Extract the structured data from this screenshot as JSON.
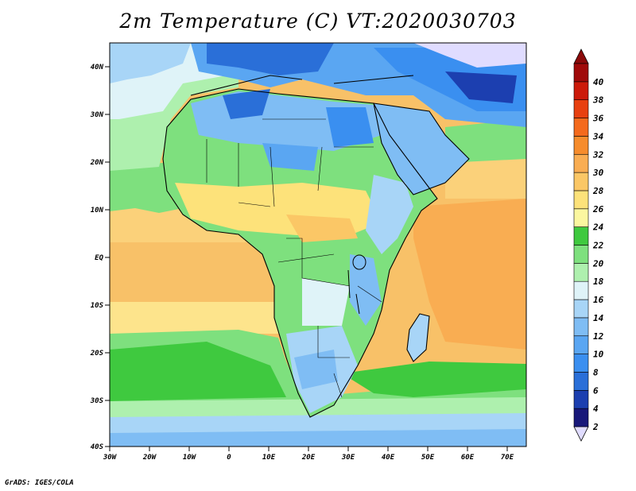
{
  "title": "2m Temperature (C) VT:2020030703",
  "footer": "GrADS: IGES/COLA",
  "axes": {
    "lat_ticks": [
      "40N",
      "30N",
      "20N",
      "10N",
      "EQ",
      "10S",
      "20S",
      "30S",
      "40S"
    ],
    "lon_ticks": [
      "30W",
      "20W",
      "10W",
      "0",
      "10E",
      "20E",
      "30E",
      "40E",
      "50E",
      "60E",
      "70E"
    ]
  },
  "colorbar": {
    "labels": [
      "2",
      "4",
      "6",
      "8",
      "10",
      "12",
      "14",
      "16",
      "18",
      "20",
      "22",
      "24",
      "26",
      "28",
      "30",
      "32",
      "34",
      "36",
      "38",
      "40"
    ],
    "colors": [
      "#18187a",
      "#1c3fb0",
      "#2a6fd8",
      "#3a8ff0",
      "#5aa6f2",
      "#7fbdf4",
      "#a8d5f7",
      "#dff3f8",
      "#aef0ae",
      "#7ee07e",
      "#3fc93f",
      "#fbf7a0",
      "#fde27a",
      "#fbc766",
      "#f9ad52",
      "#f68c2c",
      "#f46a1c",
      "#e84010",
      "#cc1a0a",
      "#a00a0a"
    ],
    "under_color": "#e0dcff",
    "over_color": "#8b0a0a"
  }
}
